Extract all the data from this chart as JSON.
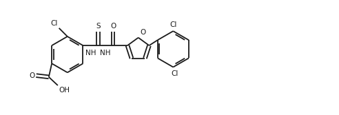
{
  "bg_color": "#ffffff",
  "line_color": "#1a1a1a",
  "line_width": 1.3,
  "font_size": 7.5,
  "figsize": [
    4.92,
    1.67
  ],
  "dpi": 100,
  "xlim": [
    -0.3,
    10.2
  ],
  "ylim": [
    0.2,
    4.0
  ],
  "hex_r": 0.6,
  "fu_r": 0.38,
  "dbl_off": 0.06
}
